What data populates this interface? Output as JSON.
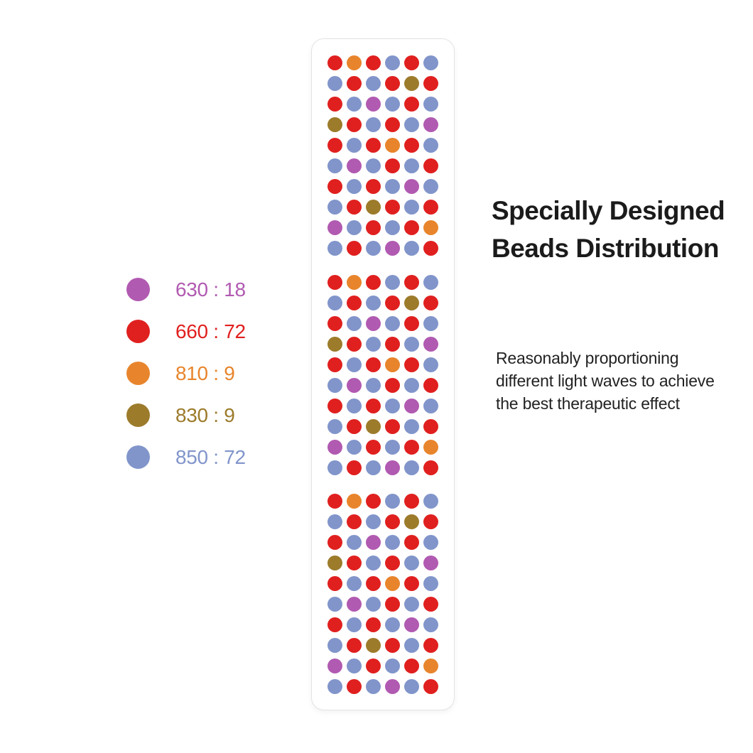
{
  "heading": {
    "line1": "Specially Designed",
    "line2": "Beads Distribution"
  },
  "description": {
    "lines": [
      "Reasonably proportioning",
      "different light waves to achieve",
      "the best therapeutic effect"
    ]
  },
  "colors": {
    "red": "#e0201f",
    "orange": "#e8852c",
    "purple": "#b15ab1",
    "olive": "#9c7b2b",
    "blue": "#8195cb",
    "panel_border": "#e3e3e3",
    "heading_text": "#1b1b1b",
    "body_text": "#222222",
    "background": "#ffffff"
  },
  "legend": {
    "items": [
      {
        "color": "purple",
        "wavelength": "630",
        "count": "18",
        "label": "630 : 18"
      },
      {
        "color": "red",
        "wavelength": "660",
        "count": "72",
        "label": "660 : 72"
      },
      {
        "color": "orange",
        "wavelength": "810",
        "count": "9",
        "label": "810 : 9"
      },
      {
        "color": "olive",
        "wavelength": "830",
        "count": "9",
        "label": "830 : 9"
      },
      {
        "color": "blue",
        "wavelength": "850",
        "count": "72",
        "label": "850 : 72"
      }
    ]
  },
  "beads_panel": {
    "blocks": 3,
    "rows_per_block": 10,
    "columns": 6,
    "pattern": [
      [
        "red",
        "orange",
        "red",
        "blue",
        "red",
        "blue"
      ],
      [
        "blue",
        "red",
        "blue",
        "red",
        "olive",
        "red"
      ],
      [
        "red",
        "blue",
        "purple",
        "blue",
        "red",
        "blue"
      ],
      [
        "olive",
        "red",
        "blue",
        "red",
        "blue",
        "purple"
      ],
      [
        "red",
        "blue",
        "red",
        "orange",
        "red",
        "blue"
      ],
      [
        "blue",
        "purple",
        "blue",
        "red",
        "blue",
        "red"
      ],
      [
        "red",
        "blue",
        "red",
        "blue",
        "purple",
        "blue"
      ],
      [
        "blue",
        "red",
        "olive",
        "red",
        "blue",
        "red"
      ],
      [
        "purple",
        "blue",
        "red",
        "blue",
        "red",
        "orange"
      ],
      [
        "blue",
        "red",
        "blue",
        "purple",
        "blue",
        "red"
      ]
    ]
  }
}
